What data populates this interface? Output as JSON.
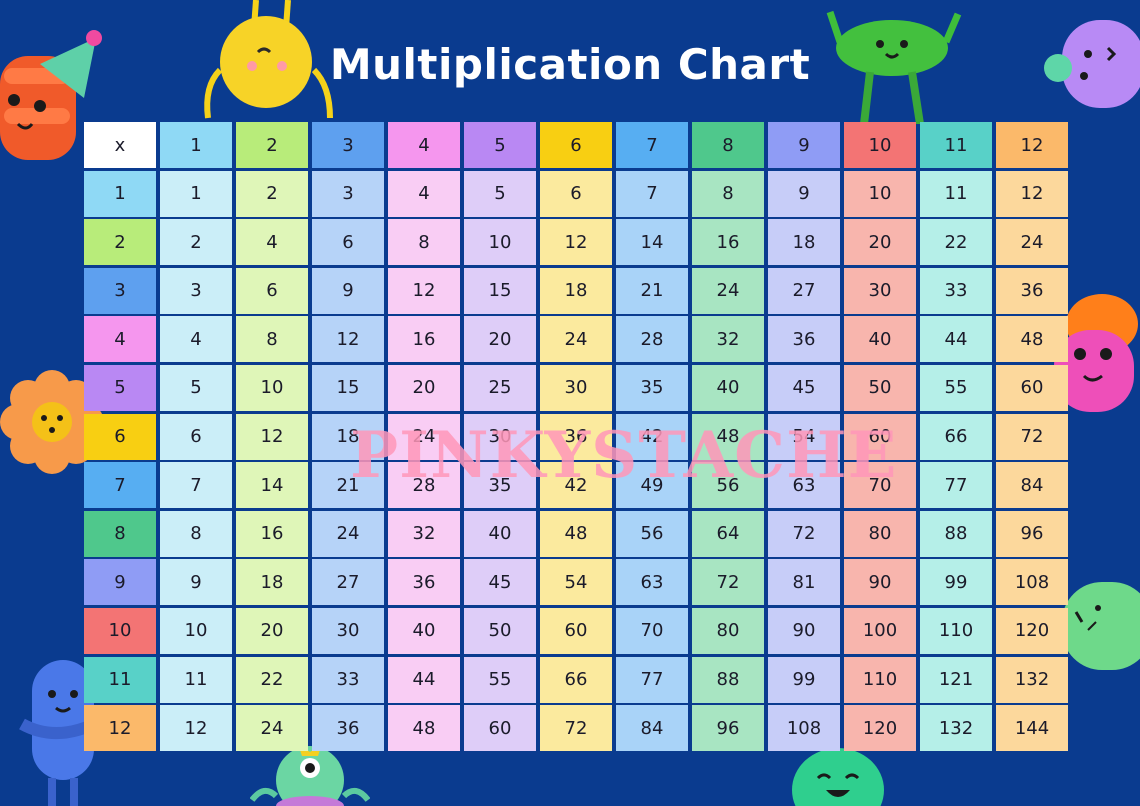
{
  "title": "Multiplication Chart",
  "corner_label": "x",
  "numbers": [
    1,
    2,
    3,
    4,
    5,
    6,
    7,
    8,
    9,
    10,
    11,
    12
  ],
  "watermark": "PINKYSTACHE",
  "colors": {
    "background": "#0a3b8f",
    "corner": "#ffffff",
    "header": [
      "#8fd9f5",
      "#b8ec7a",
      "#5ea0ef",
      "#f596ee",
      "#b988f3",
      "#f8cf12",
      "#57aef2",
      "#4fc88c",
      "#8f9cf5",
      "#f37474",
      "#58d1c8",
      "#fbb96a"
    ],
    "body": [
      "#cbeef8",
      "#dff6b8",
      "#b6d3f8",
      "#f9cdf4",
      "#decdf8",
      "#fbea9e",
      "#a9d3f8",
      "#a8e5c2",
      "#c7cdf8",
      "#f8b5ad",
      "#b5efe8",
      "#fcd89c"
    ]
  },
  "characters": [
    "party-hat-character-icon",
    "yellow-ball-character-icon",
    "green-bean-character-icon",
    "purple-blob-character-icon",
    "pink-mushroom-character-icon",
    "flower-character-icon",
    "green-ghost-character-icon",
    "blue-capsule-character-icon",
    "cyclops-character-icon",
    "green-smile-character-icon"
  ]
}
